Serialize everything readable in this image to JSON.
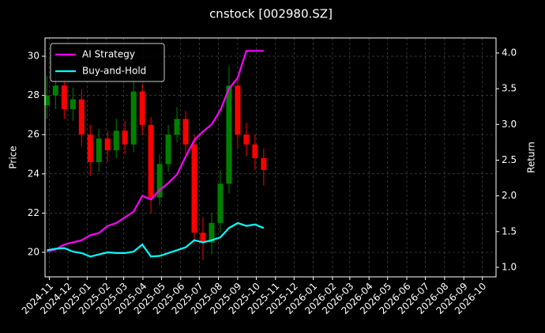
{
  "chart_data": {
    "type": "candlestick",
    "title": "cnstock [002980.SZ]",
    "ylabel": "Price",
    "y2label": "Return",
    "x": [
      "2024-10-28",
      "2024-11-11",
      "2024-11-25",
      "2024-12-09",
      "2024-12-23",
      "2025-01-06",
      "2025-01-20",
      "2025-02-03",
      "2025-02-17",
      "2025-03-03",
      "2025-03-17",
      "2025-03-31",
      "2025-04-14",
      "2025-04-28",
      "2025-05-12",
      "2025-05-26",
      "2025-06-09",
      "2025-06-23",
      "2025-07-07",
      "2025-07-21",
      "2025-08-04",
      "2025-08-18",
      "2025-09-01",
      "2025-09-15",
      "2025-09-29",
      "2025-10-13"
    ],
    "open": [
      27.5,
      28.0,
      28.5,
      27.3,
      27.8,
      26.0,
      24.6,
      25.8,
      25.2,
      26.2,
      25.5,
      28.2,
      26.5,
      22.8,
      24.5,
      26.0,
      26.8,
      25.5,
      21.0,
      20.5,
      21.5,
      23.5,
      28.5,
      26.0,
      25.5,
      24.8
    ],
    "high": [
      29.0,
      29.2,
      28.9,
      28.4,
      28.3,
      26.5,
      26.3,
      26.2,
      26.8,
      26.7,
      29.0,
      28.6,
      26.9,
      25.0,
      26.5,
      27.4,
      27.2,
      26.0,
      21.8,
      22.0,
      24.2,
      29.5,
      28.9,
      26.6,
      26.0,
      25.3
    ],
    "low": [
      26.8,
      27.3,
      26.8,
      26.7,
      25.4,
      23.9,
      24.1,
      24.6,
      24.8,
      25.0,
      25.1,
      26.0,
      22.0,
      22.4,
      24.1,
      25.6,
      25.0,
      20.4,
      19.6,
      19.9,
      21.0,
      23.0,
      25.3,
      24.9,
      24.2,
      23.4
    ],
    "close": [
      28.0,
      28.5,
      27.3,
      27.8,
      26.0,
      24.6,
      25.8,
      25.2,
      26.2,
      25.5,
      28.2,
      26.5,
      22.8,
      24.5,
      26.0,
      26.8,
      25.5,
      21.0,
      20.5,
      21.5,
      23.5,
      28.5,
      26.0,
      25.5,
      24.8,
      24.2
    ],
    "up_color": "#008000",
    "down_color": "#ff0000",
    "series": [
      {
        "name": "AI Strategy",
        "color": "#ff00ff",
        "axis": "y2",
        "values": [
          1.22,
          1.25,
          1.32,
          1.35,
          1.38,
          1.45,
          1.48,
          1.58,
          1.62,
          1.7,
          1.78,
          2.0,
          1.95,
          2.08,
          2.18,
          2.3,
          2.55,
          2.78,
          2.9,
          3.0,
          3.2,
          3.5,
          3.65,
          4.03,
          4.03,
          4.03
        ]
      },
      {
        "name": "Buy-and-Hold",
        "color": "#00ffff",
        "axis": "y2",
        "values": [
          1.24,
          1.26,
          1.27,
          1.22,
          1.2,
          1.15,
          1.18,
          1.21,
          1.2,
          1.2,
          1.22,
          1.32,
          1.15,
          1.16,
          1.2,
          1.24,
          1.28,
          1.38,
          1.35,
          1.38,
          1.42,
          1.55,
          1.62,
          1.58,
          1.6,
          1.55
        ]
      }
    ],
    "xlim": [
      "2024-10-25",
      "2026-10-23"
    ],
    "xticks": [
      {
        "value": "2024-11-01",
        "label": "2024-11"
      },
      {
        "value": "2024-12-01",
        "label": "2024-12"
      },
      {
        "value": "2025-01-01",
        "label": "2025-01"
      },
      {
        "value": "2025-02-01",
        "label": "2025-02"
      },
      {
        "value": "2025-03-01",
        "label": "2025-03"
      },
      {
        "value": "2025-04-01",
        "label": "2025-04"
      },
      {
        "value": "2025-05-01",
        "label": "2025-05"
      },
      {
        "value": "2025-06-01",
        "label": "2025-06"
      },
      {
        "value": "2025-07-01",
        "label": "2025-07"
      },
      {
        "value": "2025-08-01",
        "label": "2025-08"
      },
      {
        "value": "2025-09-01",
        "label": "2025-09"
      },
      {
        "value": "2025-10-01",
        "label": "2025-10"
      },
      {
        "value": "2025-11-01",
        "label": "2025-11"
      },
      {
        "value": "2025-12-01",
        "label": "2025-12"
      },
      {
        "value": "2026-01-01",
        "label": "2026-01"
      },
      {
        "value": "2026-02-01",
        "label": "2026-02"
      },
      {
        "value": "2026-03-01",
        "label": "2026-03"
      },
      {
        "value": "2026-04-01",
        "label": "2026-04"
      },
      {
        "value": "2026-05-01",
        "label": "2026-05"
      },
      {
        "value": "2026-06-01",
        "label": "2026-06"
      },
      {
        "value": "2026-07-01",
        "label": "2026-07"
      },
      {
        "value": "2026-08-01",
        "label": "2026-08"
      },
      {
        "value": "2026-09-01",
        "label": "2026-09"
      },
      {
        "value": "2026-10-01",
        "label": "2026-10"
      }
    ],
    "ylim": [
      18.75,
      30.93
    ],
    "yticks": [
      20,
      22,
      24,
      26,
      28,
      30
    ],
    "y2lim": [
      0.867,
      4.21
    ],
    "y2ticks": [
      {
        "value": 1,
        "label": "1.0"
      },
      1.5,
      {
        "value": 2,
        "label": "2.0"
      },
      2.5,
      {
        "value": 3,
        "label": "3.0"
      },
      3.5,
      {
        "value": 4,
        "label": "4.0"
      }
    ],
    "grid": true,
    "legend": "upper left"
  }
}
